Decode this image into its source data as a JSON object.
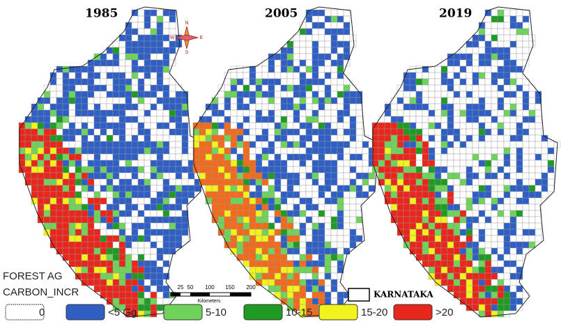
{
  "maps": [
    {
      "title": "1985"
    },
    {
      "title": "2005"
    },
    {
      "title": "2019"
    }
  ],
  "compass": {
    "north": "N",
    "south": "S",
    "east": "E",
    "west": "W"
  },
  "legend": {
    "title_lines": [
      "FOREST AG",
      "CARBON_INCR"
    ],
    "items": [
      {
        "label": "0",
        "color": "#ffffff"
      },
      {
        "label": "<5 Gg",
        "color": "#2f5fc4"
      },
      {
        "label": "5-10",
        "color": "#6ed35a"
      },
      {
        "label": "10-15",
        "color": "#1f9a22"
      },
      {
        "label": "15-20",
        "color": "#f2f21c"
      },
      {
        "label": ">20",
        "color": "#e8261c"
      }
    ]
  },
  "scale_bar": {
    "labels": [
      25,
      50,
      100,
      150,
      200
    ],
    "unit": "Kilometers"
  },
  "boundary_label": "KARNATAKA"
}
